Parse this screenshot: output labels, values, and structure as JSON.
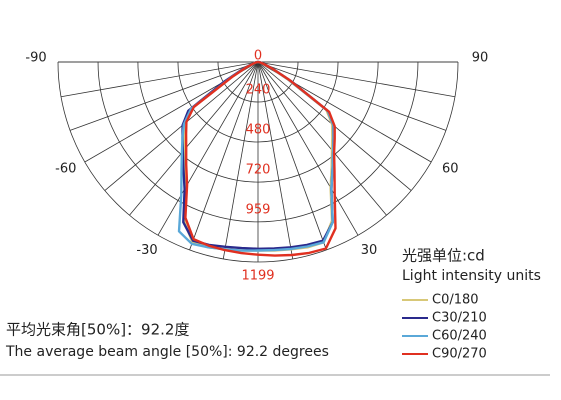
{
  "chart_data": {
    "type": "polar",
    "angles": [
      -90,
      -85,
      -80,
      -75,
      -70,
      -65,
      -60,
      -55,
      -50,
      -45,
      -40,
      -35,
      -30,
      -25,
      -20,
      -15,
      -10,
      -5,
      0,
      5,
      10,
      15,
      20,
      25,
      30,
      35,
      40,
      45,
      50,
      55,
      60,
      65,
      70,
      75,
      80,
      85,
      90
    ],
    "rlim": [
      0,
      1199
    ],
    "rticks": [
      0,
      240,
      480,
      720,
      959,
      1199
    ],
    "angle_ticks": [
      -90,
      -60,
      -30,
      30,
      60,
      90
    ],
    "legend_title": "光强单位:cd",
    "legend_subtitle": "Light intensity units",
    "series": [
      {
        "name": "C0/180",
        "color": "#d8c878",
        "values": [
          0,
          5,
          10,
          20,
          40,
          90,
          200,
          500,
          580,
          630,
          690,
          770,
          870,
          1050,
          1150,
          1150,
          1140,
          1135,
          1130,
          1135,
          1140,
          1150,
          1150,
          1050,
          870,
          770,
          690,
          630,
          580,
          500,
          200,
          90,
          40,
          20,
          10,
          5,
          0
        ]
      },
      {
        "name": "C30/210",
        "color": "#2a2a8c",
        "values": [
          0,
          5,
          12,
          22,
          45,
          100,
          230,
          510,
          590,
          640,
          700,
          780,
          880,
          1060,
          1140,
          1135,
          1125,
          1120,
          1120,
          1122,
          1128,
          1135,
          1140,
          1060,
          880,
          780,
          700,
          640,
          590,
          510,
          230,
          100,
          45,
          22,
          12,
          5,
          0
        ]
      },
      {
        "name": "C60/240",
        "color": "#5aa8d8",
        "values": [
          0,
          5,
          10,
          20,
          40,
          85,
          190,
          490,
          580,
          640,
          710,
          800,
          920,
          1120,
          1160,
          1150,
          1140,
          1135,
          1130,
          1132,
          1138,
          1145,
          1150,
          1060,
          880,
          780,
          700,
          640,
          590,
          510,
          210,
          90,
          40,
          20,
          10,
          5,
          0
        ]
      },
      {
        "name": "C90/270",
        "color": "#e03020",
        "values": [
          0,
          4,
          8,
          18,
          35,
          80,
          180,
          470,
          560,
          610,
          670,
          750,
          850,
          1030,
          1130,
          1140,
          1145,
          1150,
          1155,
          1165,
          1175,
          1185,
          1190,
          1100,
          920,
          800,
          710,
          650,
          600,
          520,
          220,
          95,
          42,
          20,
          10,
          5,
          0
        ]
      }
    ]
  },
  "beam_angle_cn": "平均光束角[50%]：92.2度",
  "beam_angle_en": "The average beam angle [50%]: 92.2 degrees"
}
